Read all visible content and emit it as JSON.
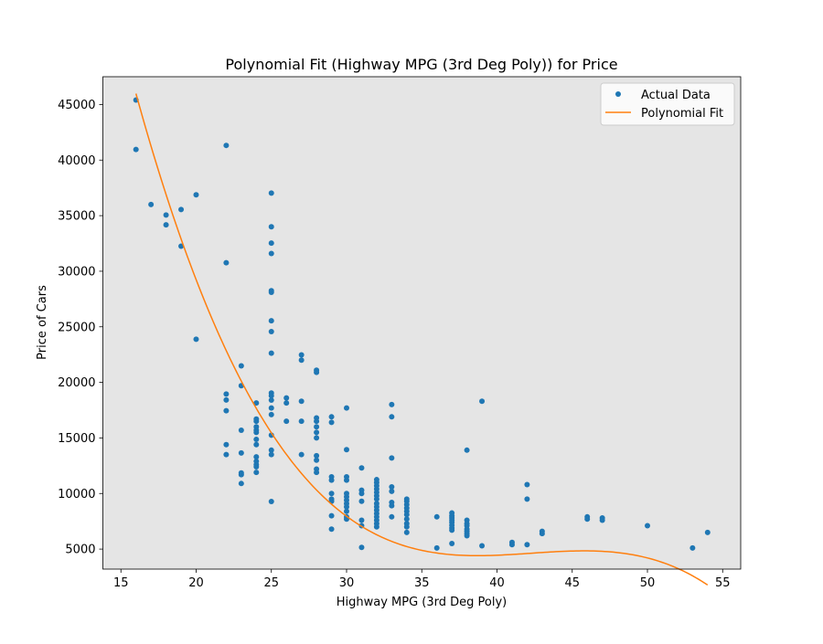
{
  "chart_data": {
    "type": "scatter",
    "title": "Polynomial Fit (Highway MPG (3rd Deg Poly)) for Price",
    "xlabel": "Highway MPG (3rd Deg Poly)",
    "ylabel": "Price of Cars",
    "xlim": [
      13.8,
      56.2
    ],
    "ylim": [
      3200,
      47500
    ],
    "xticks": [
      15,
      20,
      25,
      30,
      35,
      40,
      45,
      50,
      55
    ],
    "yticks": [
      5000,
      10000,
      15000,
      20000,
      25000,
      30000,
      35000,
      40000,
      45000
    ],
    "grid": false,
    "legend_position": "top-right",
    "background_color": "#e5e5e5",
    "series": [
      {
        "name": "Actual Data",
        "kind": "scatter",
        "color": "#1f77b4",
        "points": [
          [
            16,
            45400
          ],
          [
            16,
            40960
          ],
          [
            17,
            36000
          ],
          [
            18,
            35060
          ],
          [
            18,
            34180
          ],
          [
            19,
            35550
          ],
          [
            19,
            32250
          ],
          [
            20,
            36880
          ],
          [
            20,
            23880
          ],
          [
            22,
            41320
          ],
          [
            22,
            30760
          ],
          [
            22,
            18950
          ],
          [
            22,
            18420
          ],
          [
            22,
            17450
          ],
          [
            22,
            14400
          ],
          [
            22,
            13500
          ],
          [
            23,
            21490
          ],
          [
            23,
            19700
          ],
          [
            23,
            15690
          ],
          [
            23,
            13650
          ],
          [
            23,
            11850
          ],
          [
            23,
            11700
          ],
          [
            23,
            10900
          ],
          [
            24,
            18150
          ],
          [
            24,
            16700
          ],
          [
            24,
            16500
          ],
          [
            24,
            16000
          ],
          [
            24,
            15700
          ],
          [
            24,
            15500
          ],
          [
            24,
            14870
          ],
          [
            24,
            14400
          ],
          [
            24,
            13300
          ],
          [
            24,
            12900
          ],
          [
            24,
            12600
          ],
          [
            24,
            12400
          ],
          [
            24,
            11900
          ],
          [
            25,
            37030
          ],
          [
            25,
            34000
          ],
          [
            25,
            32530
          ],
          [
            25,
            31600
          ],
          [
            25,
            28250
          ],
          [
            25,
            28100
          ],
          [
            25,
            25550
          ],
          [
            25,
            24570
          ],
          [
            25,
            22630
          ],
          [
            25,
            19040
          ],
          [
            25,
            18800
          ],
          [
            25,
            18400
          ],
          [
            25,
            17700
          ],
          [
            25,
            17100
          ],
          [
            25,
            15250
          ],
          [
            25,
            13900
          ],
          [
            25,
            13500
          ],
          [
            25,
            9280
          ],
          [
            26,
            18600
          ],
          [
            26,
            18150
          ],
          [
            26,
            16500
          ],
          [
            27,
            22470
          ],
          [
            27,
            22000
          ],
          [
            27,
            18300
          ],
          [
            27,
            16500
          ],
          [
            27,
            13500
          ],
          [
            28,
            21100
          ],
          [
            28,
            20900
          ],
          [
            28,
            16800
          ],
          [
            28,
            16500
          ],
          [
            28,
            16000
          ],
          [
            28,
            15500
          ],
          [
            28,
            15000
          ],
          [
            28,
            13400
          ],
          [
            28,
            13000
          ],
          [
            28,
            12200
          ],
          [
            28,
            11900
          ],
          [
            29,
            16900
          ],
          [
            29,
            16400
          ],
          [
            29,
            11500
          ],
          [
            29,
            11200
          ],
          [
            29,
            10000
          ],
          [
            29,
            9500
          ],
          [
            29,
            9300
          ],
          [
            29,
            8000
          ],
          [
            29,
            6800
          ],
          [
            30,
            17700
          ],
          [
            30,
            13950
          ],
          [
            30,
            11500
          ],
          [
            30,
            11200
          ],
          [
            30,
            10000
          ],
          [
            30,
            9700
          ],
          [
            30,
            9400
          ],
          [
            30,
            9100
          ],
          [
            30,
            8800
          ],
          [
            30,
            8400
          ],
          [
            30,
            7900
          ],
          [
            30,
            7700
          ],
          [
            31,
            12300
          ],
          [
            31,
            10300
          ],
          [
            31,
            10000
          ],
          [
            31,
            9300
          ],
          [
            31,
            7600
          ],
          [
            31,
            7100
          ],
          [
            31,
            5150
          ],
          [
            32,
            11250
          ],
          [
            32,
            11000
          ],
          [
            32,
            10700
          ],
          [
            32,
            10400
          ],
          [
            32,
            10100
          ],
          [
            32,
            9800
          ],
          [
            32,
            9500
          ],
          [
            32,
            9100
          ],
          [
            32,
            8800
          ],
          [
            32,
            8500
          ],
          [
            32,
            8200
          ],
          [
            32,
            7900
          ],
          [
            32,
            7600
          ],
          [
            32,
            7300
          ],
          [
            32,
            7000
          ],
          [
            33,
            18000
          ],
          [
            33,
            16900
          ],
          [
            33,
            13200
          ],
          [
            33,
            10600
          ],
          [
            33,
            10200
          ],
          [
            33,
            9200
          ],
          [
            33,
            8900
          ],
          [
            33,
            7900
          ],
          [
            34,
            9500
          ],
          [
            34,
            9300
          ],
          [
            34,
            9000
          ],
          [
            34,
            8700
          ],
          [
            34,
            8400
          ],
          [
            34,
            8100
          ],
          [
            34,
            7700
          ],
          [
            34,
            7300
          ],
          [
            34,
            7000
          ],
          [
            34,
            6500
          ],
          [
            36,
            7900
          ],
          [
            36,
            5100
          ],
          [
            37,
            8250
          ],
          [
            37,
            8000
          ],
          [
            37,
            7800
          ],
          [
            37,
            7600
          ],
          [
            37,
            7400
          ],
          [
            37,
            7150
          ],
          [
            37,
            6900
          ],
          [
            37,
            6700
          ],
          [
            37,
            5500
          ],
          [
            38,
            13900
          ],
          [
            38,
            7600
          ],
          [
            38,
            7300
          ],
          [
            38,
            7100
          ],
          [
            38,
            6800
          ],
          [
            38,
            6600
          ],
          [
            38,
            6400
          ],
          [
            38,
            6200
          ],
          [
            39,
            18300
          ],
          [
            39,
            5300
          ],
          [
            41,
            5600
          ],
          [
            41,
            5400
          ],
          [
            42,
            10800
          ],
          [
            42,
            9500
          ],
          [
            42,
            5400
          ],
          [
            43,
            6600
          ],
          [
            43,
            6400
          ],
          [
            46,
            7900
          ],
          [
            46,
            7700
          ],
          [
            47,
            7800
          ],
          [
            47,
            7600
          ],
          [
            50,
            7100
          ],
          [
            53,
            5100
          ],
          [
            54,
            6500
          ]
        ]
      },
      {
        "name": "Polynomial Fit",
        "kind": "line",
        "color": "#ff7f0e",
        "coefficients": [
          183218.8,
          -12864.8,
          306.68,
          -2.4198
        ],
        "x_range": [
          16,
          54
        ]
      }
    ]
  }
}
